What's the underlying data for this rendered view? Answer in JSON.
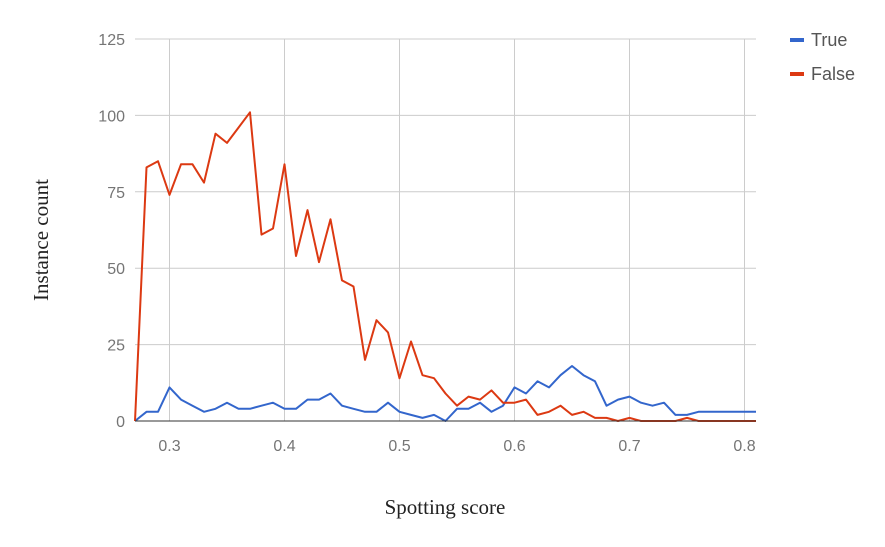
{
  "chart_data": {
    "type": "line",
    "xlabel": "Spotting score",
    "ylabel": "Instance count",
    "xlim": [
      0.27,
      0.81
    ],
    "ylim": [
      0,
      125
    ],
    "x_ticks": [
      0.3,
      0.4,
      0.5,
      0.6,
      0.7,
      0.8
    ],
    "x_tick_labels": [
      "0.3",
      "0.4",
      "0.5",
      "0.6",
      "0.7",
      "0.8"
    ],
    "y_ticks": [
      0,
      25,
      50,
      75,
      100,
      125
    ],
    "y_tick_labels": [
      "0",
      "25",
      "50",
      "75",
      "100",
      "125"
    ],
    "grid": true,
    "legend_position": "top-right",
    "x": [
      0.27,
      0.28,
      0.29,
      0.3,
      0.31,
      0.32,
      0.33,
      0.34,
      0.35,
      0.36,
      0.37,
      0.38,
      0.39,
      0.4,
      0.41,
      0.42,
      0.43,
      0.44,
      0.45,
      0.46,
      0.47,
      0.48,
      0.49,
      0.5,
      0.51,
      0.52,
      0.53,
      0.54,
      0.55,
      0.56,
      0.57,
      0.58,
      0.59,
      0.6,
      0.61,
      0.62,
      0.63,
      0.64,
      0.65,
      0.66,
      0.67,
      0.68,
      0.69,
      0.7,
      0.71,
      0.72,
      0.73,
      0.74,
      0.75,
      0.76,
      0.77,
      0.78,
      0.79,
      0.8,
      0.81
    ],
    "series": [
      {
        "name": "True",
        "color": "#3366cc",
        "values": [
          0,
          3,
          3,
          11,
          7,
          5,
          3,
          4,
          6,
          4,
          4,
          5,
          6,
          4,
          4,
          7,
          7,
          9,
          5,
          4,
          3,
          3,
          6,
          3,
          2,
          1,
          2,
          0,
          4,
          4,
          6,
          3,
          5,
          11,
          9,
          13,
          11,
          15,
          18,
          15,
          13,
          5,
          7,
          8,
          6,
          5,
          6,
          2,
          2,
          3,
          3,
          3,
          3,
          3,
          3
        ]
      },
      {
        "name": "False",
        "color": "#dc3912",
        "values": [
          0,
          83,
          85,
          74,
          84,
          84,
          78,
          94,
          91,
          96,
          101,
          61,
          63,
          84,
          54,
          69,
          52,
          66,
          46,
          44,
          20,
          33,
          29,
          14,
          26,
          15,
          14,
          9,
          5,
          8,
          7,
          10,
          6,
          6,
          7,
          2,
          3,
          5,
          2,
          3,
          1,
          1,
          0,
          1,
          0,
          0,
          0,
          0,
          1,
          0,
          0,
          0,
          0,
          0,
          0
        ]
      }
    ]
  }
}
